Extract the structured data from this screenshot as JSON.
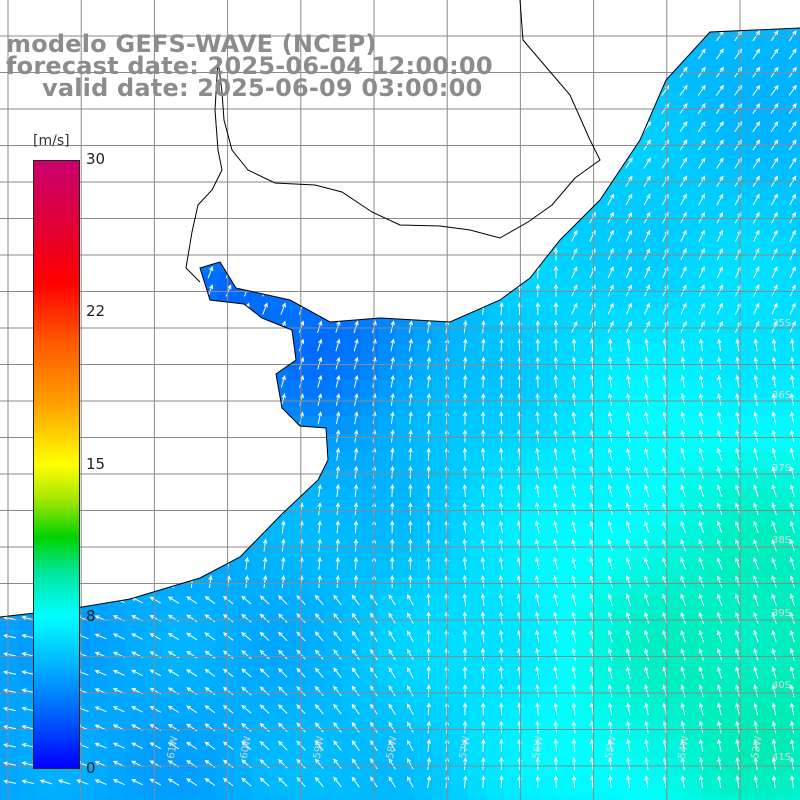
{
  "title": {
    "line1": "modelo GEFS-WAVE (NCEP)",
    "line2": "forecast date: 2025-06-04 12:00:00",
    "line3": "valid date: 2025-06-09 03:00:00"
  },
  "colorbar": {
    "units": "[m/s]",
    "ticks": [
      "30",
      "22",
      "15",
      "8",
      "0"
    ],
    "tick_values": [
      30,
      22,
      15,
      8,
      0
    ],
    "min": 0,
    "max": 30
  },
  "map": {
    "lat_labels": [
      "35S",
      "36S",
      "37S",
      "38S",
      "39S",
      "40S",
      "41S"
    ],
    "lon_labels": [
      "53W",
      "54W",
      "55W",
      "56W",
      "57W",
      "58W",
      "59W",
      "60W",
      "61W"
    ],
    "colors": {
      "land": "#ffffff",
      "grid": "#8a8a8a",
      "coast": "#000000",
      "arrow": "#ffffff"
    },
    "wind_field": {
      "variable": "wind speed",
      "units": "m/s",
      "shown_range_ms": [
        2,
        10
      ]
    }
  }
}
